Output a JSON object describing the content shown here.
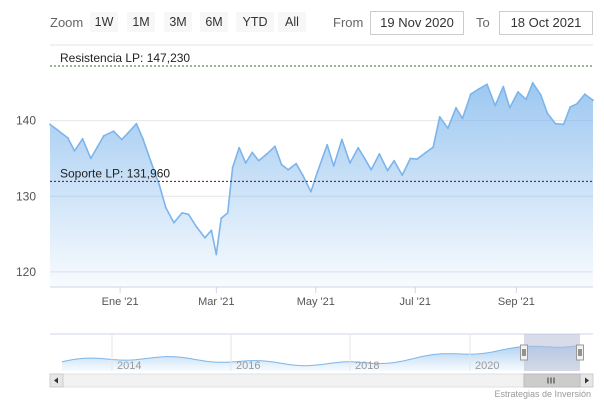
{
  "toolbar": {
    "zoom_label": "Zoom",
    "buttons": [
      "1W",
      "1M",
      "3M",
      "6M",
      "YTD",
      "All"
    ],
    "from_label": "From",
    "from_value": "19 Nov 2020",
    "to_label": "To",
    "to_value": "18 Oct 2021"
  },
  "credits": "Estrategias de Inversión",
  "colors": {
    "line": "#7cb5ec",
    "area_top": "#7cb5ec",
    "resistance": "#1f7a1f",
    "support": "#8b0000",
    "grid": "#e6e6e6",
    "navigator_mask": "#b8bfd6"
  },
  "chart_data": {
    "type": "area",
    "ylim": [
      118,
      150
    ],
    "y_ticks": [
      120,
      130,
      140
    ],
    "x_range": [
      "2020-11-19",
      "2021-10-18"
    ],
    "x_ticks": [
      {
        "date": "2021-01-01",
        "label": "Ene '21"
      },
      {
        "date": "2021-03-01",
        "label": "Mar '21"
      },
      {
        "date": "2021-05-01",
        "label": "May '21"
      },
      {
        "date": "2021-07-01",
        "label": "Jul '21"
      },
      {
        "date": "2021-09-01",
        "label": "Sep '21"
      }
    ],
    "plot_lines": [
      {
        "name": "resistance",
        "label": "Resistencia LP: 147,230",
        "value": 147.23
      },
      {
        "name": "support",
        "label": "Soporte LP: 131,960",
        "value": 131.96
      }
    ],
    "series": [
      {
        "x": [
          "2020-11-19",
          "2020-11-24",
          "2020-11-30",
          "2020-12-04",
          "2020-12-09",
          "2020-12-14",
          "2020-12-18",
          "2020-12-22",
          "2020-12-28",
          "2021-01-02",
          "2021-01-06",
          "2021-01-11",
          "2021-01-15",
          "2021-01-20",
          "2021-01-25",
          "2021-01-29",
          "2021-02-03",
          "2021-02-08",
          "2021-02-12",
          "2021-02-17",
          "2021-02-22",
          "2021-02-26",
          "2021-03-01",
          "2021-03-04",
          "2021-03-08",
          "2021-03-11",
          "2021-03-15",
          "2021-03-19",
          "2021-03-23",
          "2021-03-27",
          "2021-04-01",
          "2021-04-06",
          "2021-04-10",
          "2021-04-14",
          "2021-04-19",
          "2021-04-23",
          "2021-04-28",
          "2021-05-02",
          "2021-05-05",
          "2021-05-08",
          "2021-05-12",
          "2021-05-17",
          "2021-05-22",
          "2021-05-27",
          "2021-05-31",
          "2021-06-04",
          "2021-06-09",
          "2021-06-14",
          "2021-06-18",
          "2021-06-23",
          "2021-06-28",
          "2021-07-02",
          "2021-07-07",
          "2021-07-12",
          "2021-07-16",
          "2021-07-21",
          "2021-07-26",
          "2021-07-30",
          "2021-08-04",
          "2021-08-09",
          "2021-08-14",
          "2021-08-19",
          "2021-08-24",
          "2021-08-28",
          "2021-09-02",
          "2021-09-07",
          "2021-09-11",
          "2021-09-16",
          "2021-09-20",
          "2021-09-25",
          "2021-09-30",
          "2021-10-04",
          "2021-10-08",
          "2021-10-13",
          "2021-10-16",
          "2021-10-18"
        ],
        "values": [
          139.5,
          138.7,
          137.7,
          136.0,
          137.6,
          135.0,
          136.5,
          138.0,
          138.6,
          137.5,
          138.4,
          139.6,
          137.6,
          134.5,
          131.5,
          128.5,
          126.5,
          127.8,
          127.6,
          125.9,
          124.5,
          125.5,
          122.3,
          127.1,
          127.8,
          133.8,
          136.4,
          134.4,
          135.8,
          134.7,
          135.6,
          136.6,
          134.2,
          133.5,
          134.3,
          132.8,
          130.6,
          133.2,
          135.0,
          136.8,
          134.0,
          137.5,
          134.4,
          136.4,
          135.0,
          133.5,
          135.6,
          133.4,
          134.7,
          132.8,
          135.0,
          134.9,
          135.7,
          136.5,
          140.5,
          139.0,
          141.7,
          140.3,
          143.5,
          144.2,
          144.8,
          142.0,
          144.5,
          141.7,
          143.8,
          142.8,
          145.0,
          143.4,
          141.0,
          139.6,
          139.5,
          141.8,
          142.2,
          143.5,
          143.0,
          142.7
        ]
      }
    ],
    "navigator": {
      "x_labels": [
        "2014",
        "2016",
        "2018",
        "2020"
      ],
      "selected_range": [
        "2020-11-19",
        "2021-10-18"
      ]
    }
  }
}
